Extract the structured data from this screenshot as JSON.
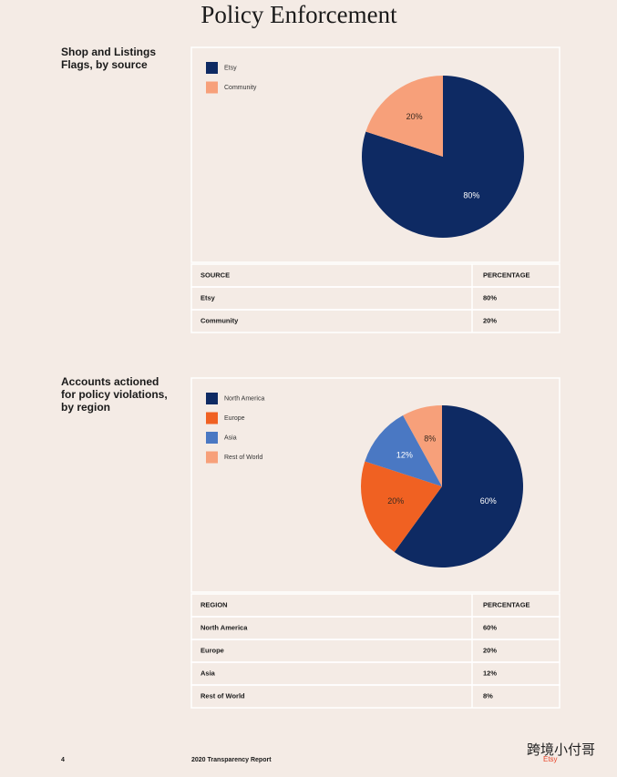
{
  "header": {
    "title": "Policy Enforcement"
  },
  "chart_data": [
    {
      "type": "pie",
      "categories": [
        "Etsy",
        "Community"
      ],
      "values": [
        80,
        20
      ],
      "value_labels": [
        "80%",
        "20%"
      ],
      "colors": [
        "#0e2a63",
        "#f7a07a"
      ],
      "label_colors": [
        "#ffffff",
        "#3a2a20"
      ]
    },
    {
      "type": "pie",
      "categories": [
        "North America",
        "Europe",
        "Asia",
        "Rest of World"
      ],
      "values": [
        60,
        20,
        12,
        8
      ],
      "value_labels": [
        "60%",
        "20%",
        "12%",
        "8%"
      ],
      "colors": [
        "#0e2a63",
        "#f06122",
        "#4a78c3",
        "#f7a07a"
      ],
      "label_colors": [
        "#ffffff",
        "#3a2a20",
        "#ffffff",
        "#3a2a20"
      ]
    }
  ],
  "sections": [
    {
      "heading_lines": [
        "Shop and Listings",
        "Flags, by source"
      ],
      "table": {
        "header": [
          "SOURCE",
          "PERCENTAGE"
        ],
        "rows": [
          [
            "Etsy",
            "80%"
          ],
          [
            "Community",
            "20%"
          ]
        ]
      }
    },
    {
      "heading_lines": [
        "Accounts actioned",
        "for policy violations,",
        "by region"
      ],
      "table": {
        "header": [
          "REGION",
          "PERCENTAGE"
        ],
        "rows": [
          [
            "North America",
            "60%"
          ],
          [
            "Europe",
            "20%"
          ],
          [
            "Asia",
            "12%"
          ],
          [
            "Rest of World",
            "8%"
          ]
        ]
      }
    }
  ],
  "footer": {
    "page": "4",
    "report": "2020 Transparency Report"
  },
  "watermark": {
    "text": "跨境小付哥",
    "sub": "Etsy"
  }
}
